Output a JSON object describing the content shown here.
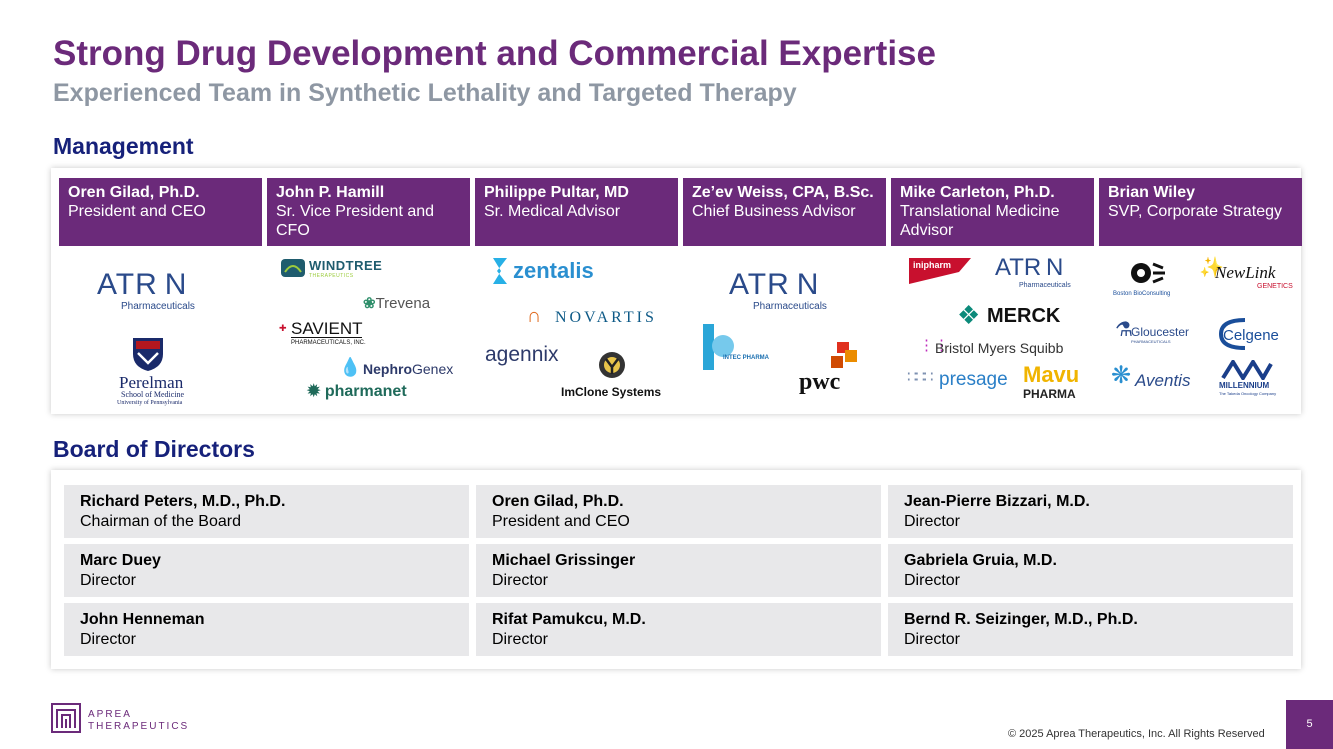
{
  "header": {
    "title": "Strong Drug Development and Commercial Expertise",
    "subtitle": "Experienced Team in Synthetic Lethality and Targeted Therapy"
  },
  "management": {
    "heading": "Management",
    "members": [
      {
        "name": "Oren Gilad, Ph.D.",
        "role": "President and CEO"
      },
      {
        "name": "John P. Hamill",
        "role": "Sr. Vice President and CFO"
      },
      {
        "name": "Philippe Pultar, MD",
        "role": "Sr. Medical Advisor"
      },
      {
        "name": "Ze’ev Weiss, CPA, B.Sc.",
        "role": "Chief Business Advisor"
      },
      {
        "name": "Mike Carleton, Ph.D.",
        "role": "Translational Medicine Advisor"
      },
      {
        "name": "Brian Wiley",
        "role": "SVP, Corporate Strategy"
      }
    ],
    "logos": {
      "atrin": "ATR N",
      "atrin_sub": "Pharmaceuticals",
      "perelman": "Perelman",
      "perelman_sub1": "School of Medicine",
      "perelman_sub2": "University of Pennsylvania",
      "windtree": "WINDTREE",
      "windtree_sub": "THERAPEUTICS",
      "trevena": "Trevena",
      "savient": "SAVIENT",
      "savient_sub": "PHARMACEUTICALS, INC.",
      "nephrogenex_a": "Nephro",
      "nephrogenex_b": "Genex",
      "pharmanet": "pharmanet",
      "zentalis": "zentalis",
      "novartis": "NOVARTIS",
      "agennix": "agennix",
      "imclone": "ImClone Systems",
      "intec": "INTEC PHARMA",
      "pwc": "pwc",
      "inipharm": "inipharm",
      "merck": "MERCK",
      "bms": "Bristol Myers Squibb",
      "presage": "presage",
      "mavu": "Mavu",
      "mavu_sub": "PHARMA",
      "bcg": "Boston BioConsulting",
      "newlink": "NewLink",
      "newlink_sub": "GENETICS",
      "gloucester": "Gloucester",
      "gloucester_sub": "PHARMACEUTICALS",
      "celgene": "Celgene",
      "aventis": "Aventis",
      "millennium": "MILLENNIUM",
      "millennium_sub": "The Takeda Oncology Company"
    }
  },
  "board": {
    "heading": "Board of Directors",
    "members": [
      {
        "name": "Richard Peters, M.D., Ph.D.",
        "role": "Chairman of the Board"
      },
      {
        "name": "Oren Gilad, Ph.D.",
        "role": "President and CEO"
      },
      {
        "name": "Jean-Pierre Bizzari, M.D.",
        "role": "Director"
      },
      {
        "name": "Marc Duey",
        "role": "Director"
      },
      {
        "name": "Michael Grissinger",
        "role": "Director"
      },
      {
        "name": "Gabriela Gruia, M.D.",
        "role": "Director"
      },
      {
        "name": "John Henneman",
        "role": "Director"
      },
      {
        "name": "Rifat Pamukcu, M.D.",
        "role": "Director"
      },
      {
        "name": "Bernd R. Seizinger, M.D., Ph.D.",
        "role": "Director"
      }
    ]
  },
  "footer": {
    "logo_line1": "APREA",
    "logo_line2": "THERAPEUTICS",
    "copyright": "© 2025 Aprea Therapeutics, Inc. All Rights Reserved",
    "page_number": "5"
  },
  "colors": {
    "brand_purple": "#6b2a7a",
    "heading_navy": "#16217a",
    "subtitle_gray": "#8e97a3",
    "cell_gray": "#e8e8ea"
  }
}
